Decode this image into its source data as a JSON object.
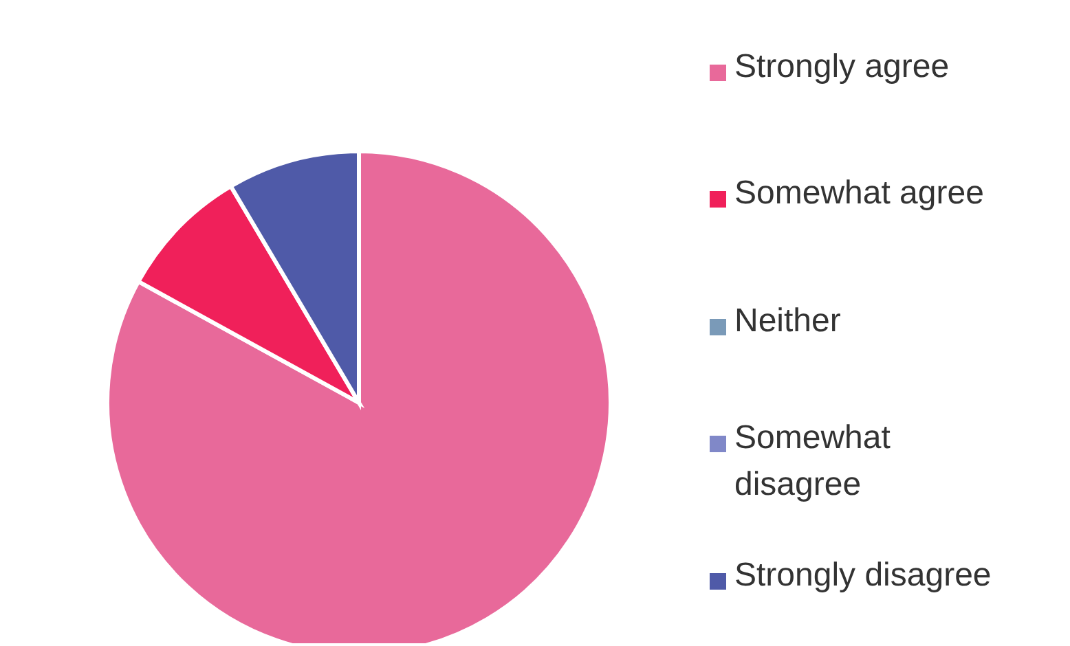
{
  "chart_data": {
    "type": "pie",
    "categories": [
      "Strongly agree",
      "Somewhat agree",
      "Neither",
      "Somewhat disagree",
      "Strongly disagree"
    ],
    "values": [
      83,
      8.5,
      0,
      0,
      8.5
    ],
    "colors": [
      "#e8699a",
      "#f0205a",
      "#7a9ab8",
      "#8088c8",
      "#4f5aa8"
    ],
    "legend": "right"
  }
}
